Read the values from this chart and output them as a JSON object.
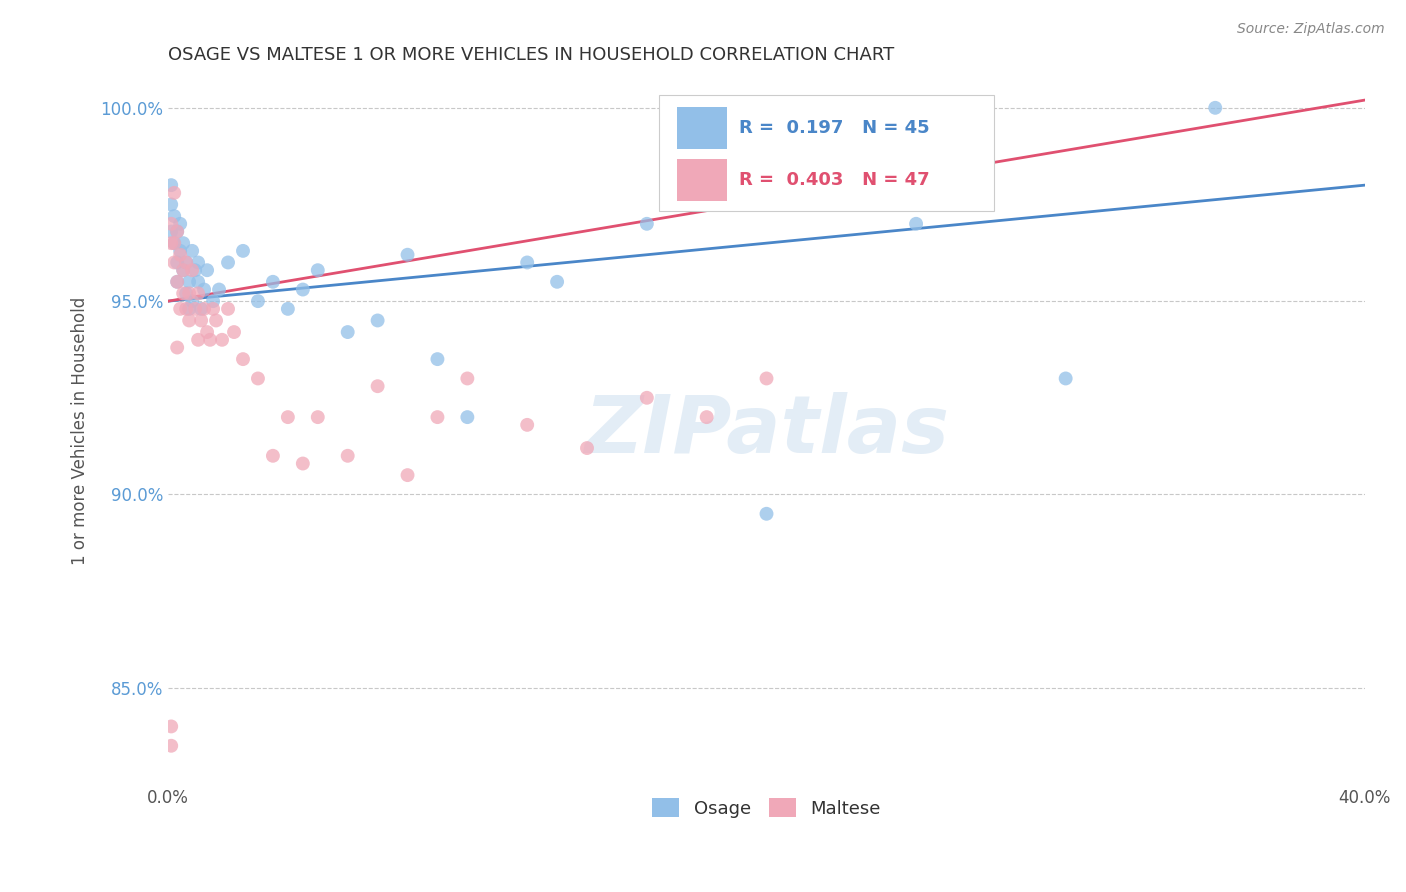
{
  "title": "OSAGE VS MALTESE 1 OR MORE VEHICLES IN HOUSEHOLD CORRELATION CHART",
  "source": "Source: ZipAtlas.com",
  "ylabel": "1 or more Vehicles in Household",
  "xlim": [
    0.0,
    0.4
  ],
  "ylim": [
    0.825,
    1.008
  ],
  "ytick_vals": [
    0.85,
    0.9,
    0.95,
    1.0
  ],
  "ytick_labels": [
    "85.0%",
    "90.0%",
    "95.0%",
    "100.0%"
  ],
  "osage_color": "#92bfe8",
  "maltese_color": "#f0a8b8",
  "osage_line_color": "#4a86c8",
  "maltese_line_color": "#e05070",
  "R_osage": 0.197,
  "N_osage": 45,
  "R_maltese": 0.403,
  "N_maltese": 47,
  "watermark_zip": "ZIP",
  "watermark_atlas": "atlas",
  "legend_labels": [
    "Osage",
    "Maltese"
  ],
  "osage_line_x0": 0.0,
  "osage_line_y0": 0.95,
  "osage_line_x1": 0.4,
  "osage_line_y1": 0.98,
  "maltese_line_x0": 0.0,
  "maltese_line_y0": 0.95,
  "maltese_line_x1": 0.4,
  "maltese_line_y1": 1.002,
  "osage_x": [
    0.001,
    0.001,
    0.001,
    0.002,
    0.002,
    0.003,
    0.003,
    0.003,
    0.004,
    0.004,
    0.005,
    0.005,
    0.006,
    0.006,
    0.007,
    0.007,
    0.008,
    0.008,
    0.009,
    0.01,
    0.01,
    0.011,
    0.012,
    0.013,
    0.015,
    0.017,
    0.02,
    0.025,
    0.03,
    0.035,
    0.04,
    0.05,
    0.06,
    0.08,
    0.1,
    0.12,
    0.16,
    0.2,
    0.25,
    0.3,
    0.35,
    0.13,
    0.09,
    0.07,
    0.045
  ],
  "osage_y": [
    0.98,
    0.975,
    0.968,
    0.965,
    0.972,
    0.96,
    0.968,
    0.955,
    0.963,
    0.97,
    0.958,
    0.965,
    0.952,
    0.96,
    0.948,
    0.955,
    0.963,
    0.95,
    0.958,
    0.955,
    0.96,
    0.948,
    0.953,
    0.958,
    0.95,
    0.953,
    0.96,
    0.963,
    0.95,
    0.955,
    0.948,
    0.958,
    0.942,
    0.962,
    0.92,
    0.96,
    0.97,
    0.895,
    0.97,
    0.93,
    1.0,
    0.955,
    0.935,
    0.945,
    0.953
  ],
  "maltese_x": [
    0.001,
    0.001,
    0.002,
    0.002,
    0.003,
    0.003,
    0.004,
    0.004,
    0.005,
    0.005,
    0.006,
    0.006,
    0.007,
    0.007,
    0.008,
    0.009,
    0.01,
    0.01,
    0.011,
    0.012,
    0.013,
    0.014,
    0.015,
    0.016,
    0.018,
    0.02,
    0.022,
    0.025,
    0.03,
    0.035,
    0.04,
    0.045,
    0.05,
    0.06,
    0.07,
    0.08,
    0.09,
    0.1,
    0.12,
    0.14,
    0.16,
    0.18,
    0.2,
    0.001,
    0.001,
    0.002,
    0.003
  ],
  "maltese_y": [
    0.97,
    0.965,
    0.978,
    0.96,
    0.968,
    0.955,
    0.962,
    0.948,
    0.958,
    0.952,
    0.96,
    0.948,
    0.945,
    0.952,
    0.958,
    0.948,
    0.952,
    0.94,
    0.945,
    0.948,
    0.942,
    0.94,
    0.948,
    0.945,
    0.94,
    0.948,
    0.942,
    0.935,
    0.93,
    0.91,
    0.92,
    0.908,
    0.92,
    0.91,
    0.928,
    0.905,
    0.92,
    0.93,
    0.918,
    0.912,
    0.925,
    0.92,
    0.93,
    0.84,
    0.835,
    0.965,
    0.938
  ]
}
